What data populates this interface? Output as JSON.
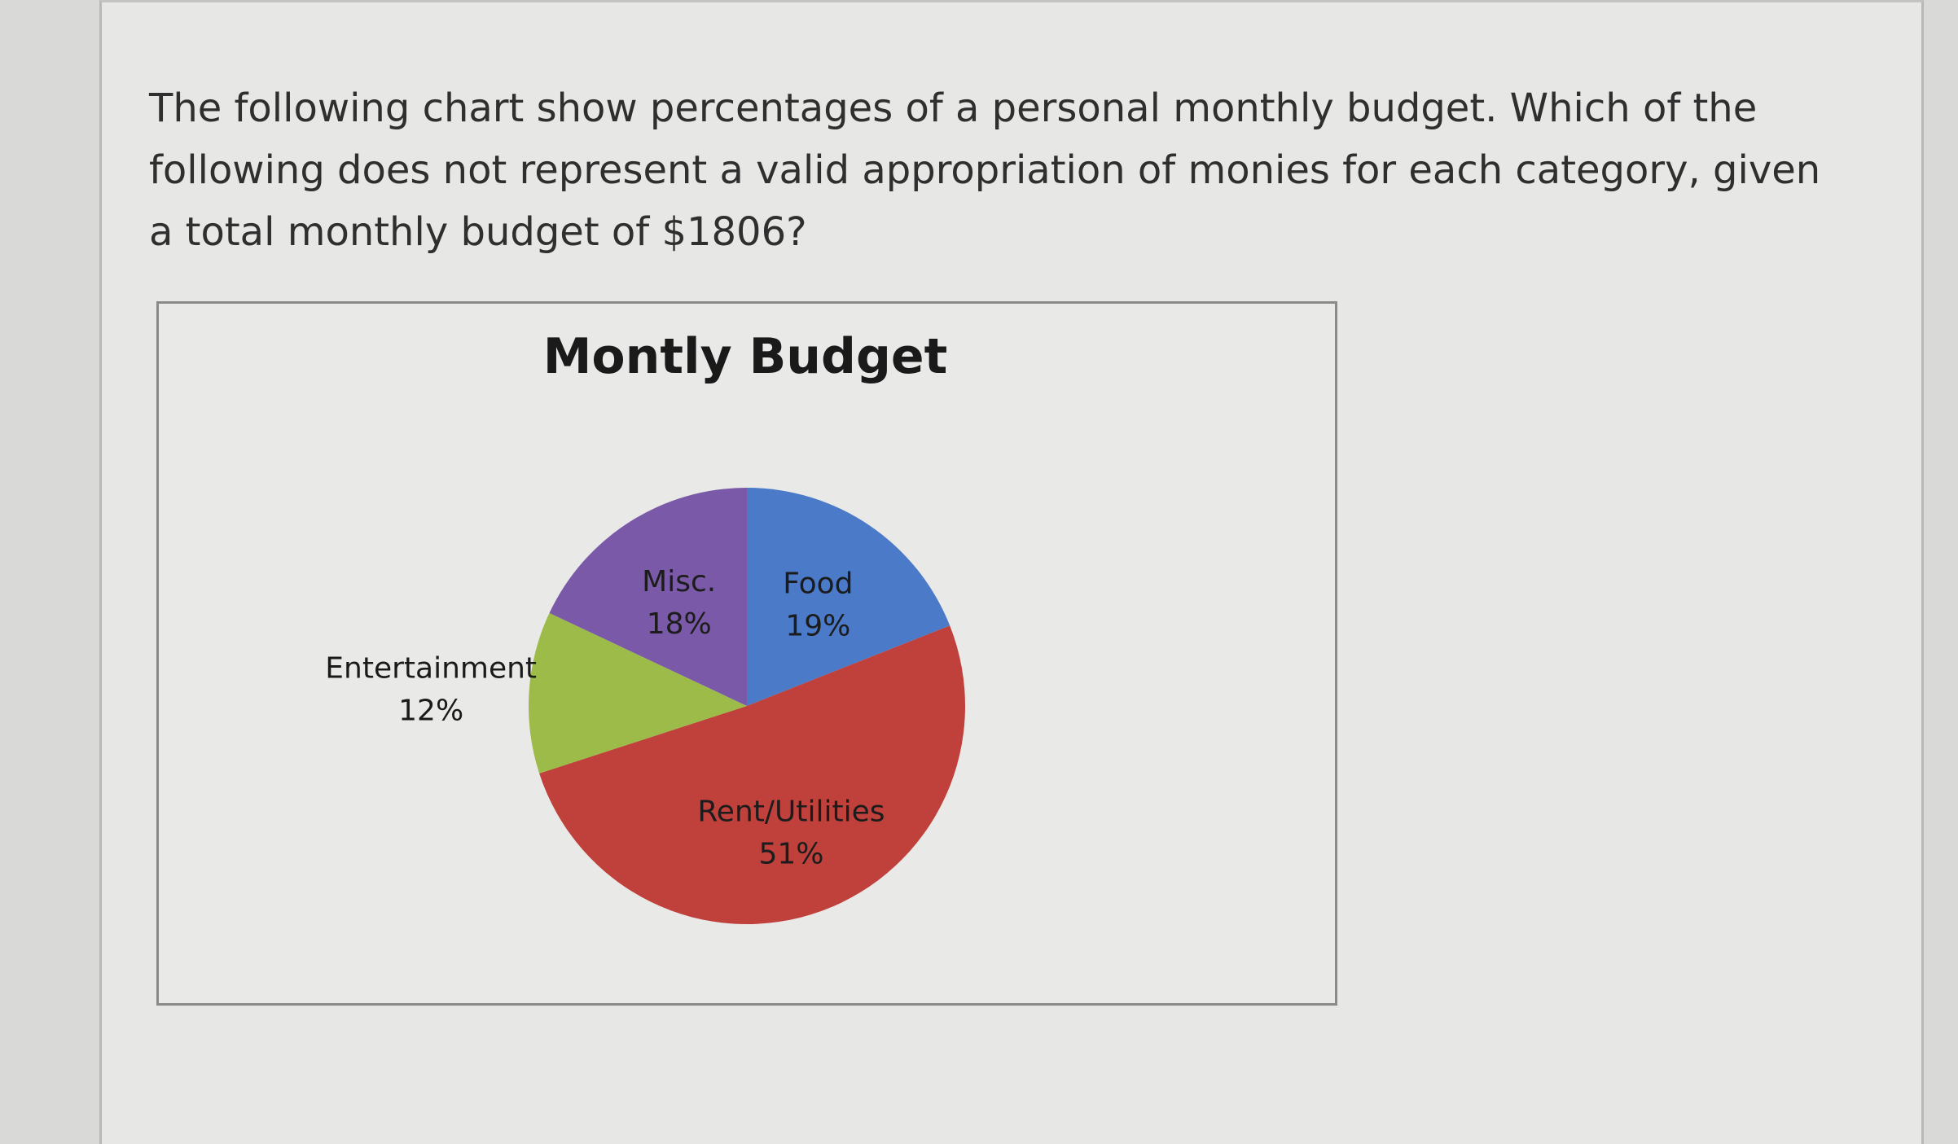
{
  "question": {
    "text": "The following chart show percentages of a personal monthly budget. Which of the following does not represent a valid appropriation of monies for each category, given a total monthly budget of $1806?"
  },
  "chart_data": {
    "type": "pie",
    "title": "Montly Budget",
    "start_angle_deg": 0,
    "slices": [
      {
        "label": "Food",
        "value": 19,
        "display": "19%",
        "color": "#4a7ac8"
      },
      {
        "label": "Rent/Utilities",
        "value": 51,
        "display": "51%",
        "color": "#c0413c"
      },
      {
        "label": "Entertainment",
        "value": 12,
        "display": "12%",
        "color": "#9cbb48"
      },
      {
        "label": "Misc.",
        "value": 18,
        "display": "18%",
        "color": "#7a5aa8"
      }
    ]
  }
}
